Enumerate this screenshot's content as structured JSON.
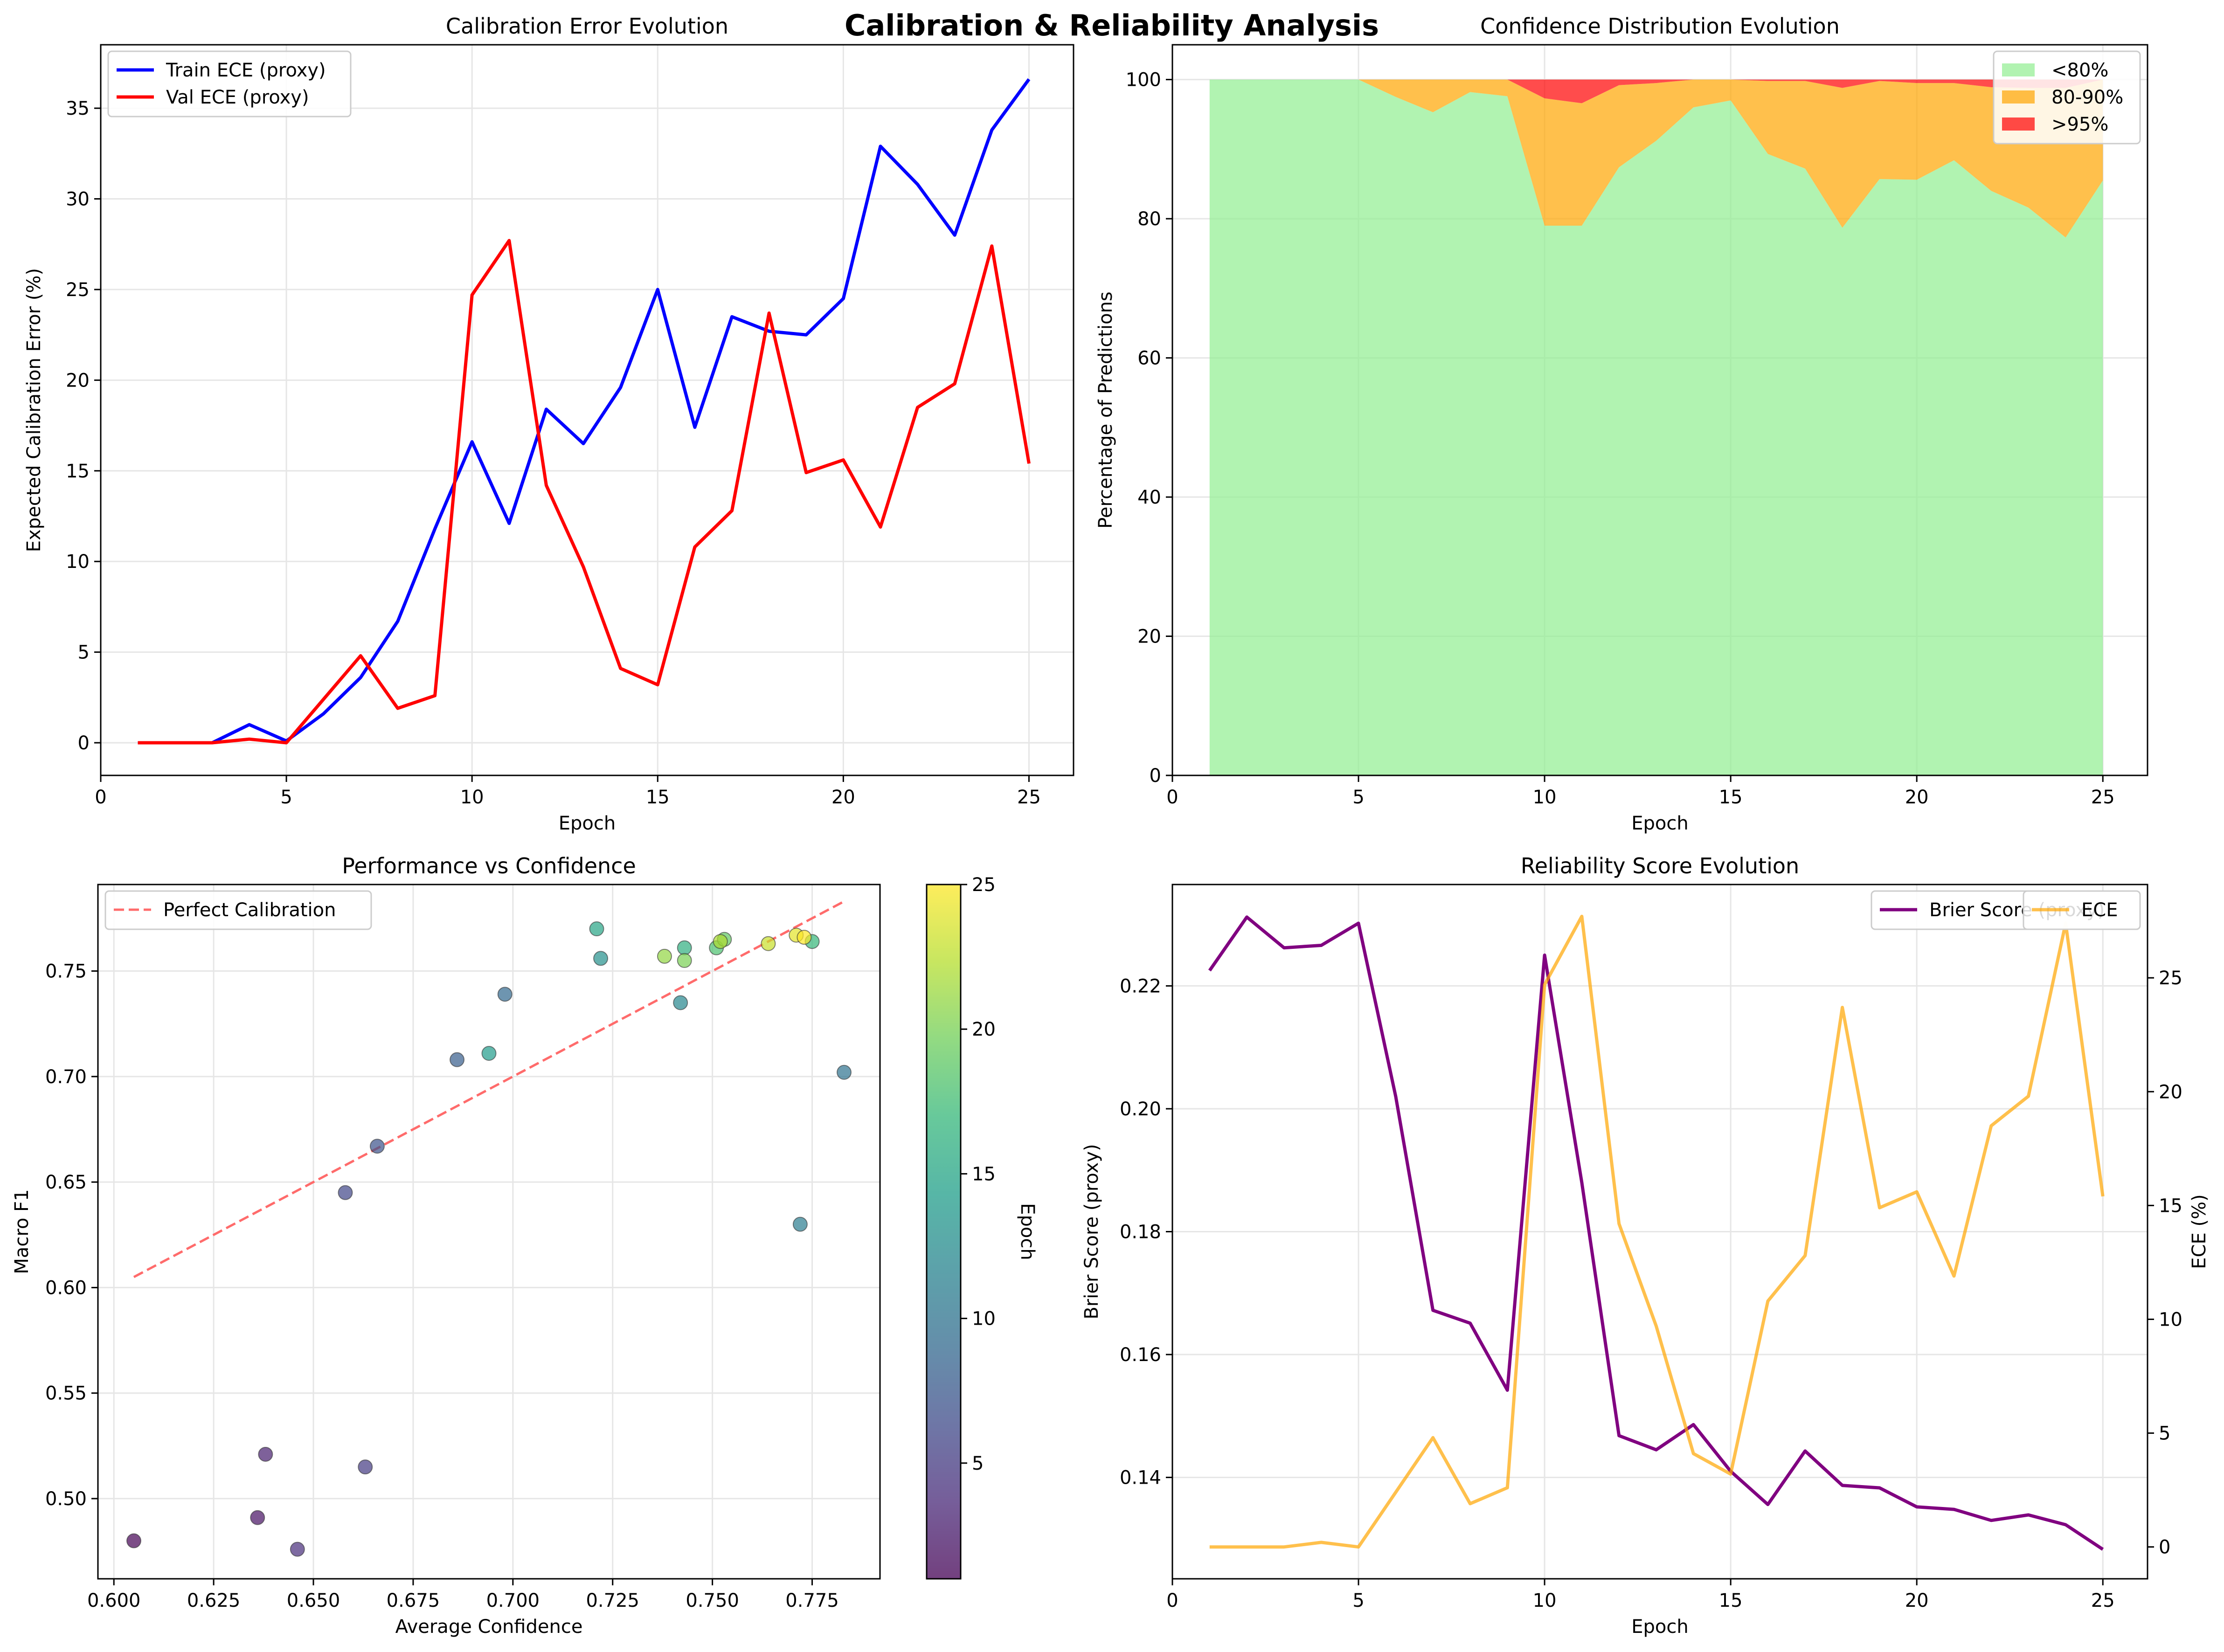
{
  "figure_title": "Calibration & Reliability Analysis",
  "colors": {
    "train": "#0000ff",
    "val": "#ff0000",
    "lt80": "#90ee90",
    "mid": "#ffa500",
    "gt95": "#ff0000",
    "brier": "#800080",
    "ece": "#ffa500",
    "perfect": "#ff6b6b",
    "grid": "#e6e6e6"
  },
  "chart_data": [
    {
      "type": "line",
      "title": "Calibration Error Evolution",
      "xlabel": "Epoch",
      "ylabel": "Expected Calibration Error (%)",
      "xlim": [
        0,
        26.2
      ],
      "ylim": [
        -1.8,
        38.5
      ],
      "xticks": [
        0,
        5,
        10,
        15,
        20,
        25
      ],
      "yticks": [
        0,
        5,
        10,
        15,
        20,
        25,
        30,
        35
      ],
      "grid": true,
      "legend": "upper left",
      "x": [
        1,
        2,
        3,
        4,
        5,
        6,
        7,
        8,
        9,
        10,
        11,
        12,
        13,
        14,
        15,
        16,
        17,
        18,
        19,
        20,
        21,
        22,
        23,
        24,
        25
      ],
      "series": [
        {
          "name": "Train ECE (proxy)",
          "color": "#0000ff",
          "values": [
            0,
            0,
            0,
            1.0,
            0.1,
            1.6,
            3.6,
            6.7,
            11.8,
            16.6,
            12.1,
            18.4,
            16.5,
            19.6,
            25.0,
            17.4,
            23.5,
            22.7,
            22.5,
            24.5,
            32.9,
            30.8,
            28.0,
            33.8,
            36.6
          ]
        },
        {
          "name": "Val ECE (proxy)",
          "color": "#ff0000",
          "values": [
            0,
            0,
            0,
            0.2,
            0,
            2.4,
            4.8,
            1.9,
            2.6,
            24.7,
            27.7,
            14.2,
            9.7,
            4.1,
            3.2,
            10.8,
            12.8,
            23.7,
            14.9,
            15.6,
            11.9,
            18.5,
            19.8,
            27.4,
            15.4
          ]
        }
      ]
    },
    {
      "type": "area",
      "stacked": true,
      "title": "Confidence Distribution Evolution",
      "xlabel": "Epoch",
      "ylabel": "Percentage of Predictions",
      "xlim": [
        0,
        26.2
      ],
      "ylim": [
        0,
        105
      ],
      "xticks": [
        0,
        5,
        10,
        15,
        20,
        25
      ],
      "yticks": [
        0,
        20,
        40,
        60,
        80,
        100
      ],
      "grid": true,
      "legend": "upper right",
      "x": [
        1,
        2,
        3,
        4,
        5,
        6,
        7,
        8,
        9,
        10,
        11,
        12,
        13,
        14,
        15,
        16,
        17,
        18,
        19,
        20,
        21,
        22,
        23,
        24,
        25
      ],
      "series": [
        {
          "name": "<80%",
          "color": "#90ee90",
          "values": [
            100,
            100,
            100,
            100,
            100,
            97.5,
            95.3,
            98.2,
            97.6,
            79,
            79,
            87.4,
            91.2,
            96,
            97,
            89.3,
            87.2,
            78.7,
            85.7,
            85.6,
            88.4,
            84,
            81.6,
            77.3,
            85.5
          ]
        },
        {
          "name": "80-90%",
          "color": "#ffa500",
          "values": [
            0,
            0,
            0,
            0,
            0,
            2.5,
            4.7,
            1.8,
            2.4,
            18.3,
            17.6,
            11.8,
            8.3,
            4,
            3,
            10.5,
            12.6,
            20.1,
            14.1,
            13.9,
            11.1,
            14.9,
            17.2,
            21.5,
            14.5
          ]
        },
        {
          "name": ">95%",
          "color": "#ff0000",
          "values": [
            0,
            0,
            0,
            0,
            0,
            0,
            0,
            0,
            0,
            2.7,
            3.4,
            0.8,
            0.5,
            0,
            0,
            0.2,
            0.2,
            1.2,
            0.2,
            0.5,
            0.5,
            1.1,
            1.2,
            1.2,
            0
          ]
        }
      ]
    },
    {
      "type": "scatter",
      "title": "Performance vs Confidence",
      "xlabel": "Average Confidence",
      "ylabel": "Macro F1",
      "xlim": [
        0.596,
        0.792
      ],
      "ylim": [
        0.462,
        0.791
      ],
      "xticks": [
        0.6,
        0.625,
        0.65,
        0.675,
        0.7,
        0.725,
        0.75,
        0.775
      ],
      "yticks": [
        0.5,
        0.55,
        0.6,
        0.65,
        0.7,
        0.75
      ],
      "grid": true,
      "legend": "upper left",
      "colorbar": {
        "label": "Epoch",
        "min": 1,
        "max": 25,
        "ticks": [
          5,
          10,
          15,
          20,
          25
        ],
        "colormap": "viridis"
      },
      "reference_line": {
        "name": "Perfect Calibration",
        "x": [
          0.605,
          0.783
        ],
        "y": [
          0.605,
          0.783
        ]
      },
      "points": [
        {
          "epoch": 1,
          "x": 0.605,
          "y": 0.48
        },
        {
          "epoch": 2,
          "x": 0.636,
          "y": 0.491
        },
        {
          "epoch": 3,
          "x": 0.638,
          "y": 0.521
        },
        {
          "epoch": 4,
          "x": 0.646,
          "y": 0.476
        },
        {
          "epoch": 5,
          "x": 0.663,
          "y": 0.515
        },
        {
          "epoch": 6,
          "x": 0.658,
          "y": 0.645
        },
        {
          "epoch": 7,
          "x": 0.666,
          "y": 0.667
        },
        {
          "epoch": 8,
          "x": 0.686,
          "y": 0.708
        },
        {
          "epoch": 9,
          "x": 0.698,
          "y": 0.739
        },
        {
          "epoch": 10,
          "x": 0.783,
          "y": 0.702
        },
        {
          "epoch": 11,
          "x": 0.772,
          "y": 0.63
        },
        {
          "epoch": 12,
          "x": 0.742,
          "y": 0.735
        },
        {
          "epoch": 13,
          "x": 0.722,
          "y": 0.756
        },
        {
          "epoch": 14,
          "x": 0.694,
          "y": 0.711
        },
        {
          "epoch": 15,
          "x": 0.721,
          "y": 0.77
        },
        {
          "epoch": 16,
          "x": 0.743,
          "y": 0.761
        },
        {
          "epoch": 17,
          "x": 0.775,
          "y": 0.764
        },
        {
          "epoch": 18,
          "x": 0.751,
          "y": 0.761
        },
        {
          "epoch": 19,
          "x": 0.753,
          "y": 0.765
        },
        {
          "epoch": 20,
          "x": 0.743,
          "y": 0.755
        },
        {
          "epoch": 21,
          "x": 0.738,
          "y": 0.757
        },
        {
          "epoch": 22,
          "x": 0.752,
          "y": 0.764
        },
        {
          "epoch": 23,
          "x": 0.764,
          "y": 0.763
        },
        {
          "epoch": 24,
          "x": 0.771,
          "y": 0.767
        },
        {
          "epoch": 25,
          "x": 0.773,
          "y": 0.766
        }
      ]
    },
    {
      "type": "line",
      "dual_axis": true,
      "title": "Reliability Score Evolution",
      "xlabel": "Epoch",
      "ylabel": "Brier Score (proxy)",
      "ylabel_right": "ECE (%)",
      "xlim": [
        0,
        26.2
      ],
      "ylim": [
        0.1235,
        0.2365
      ],
      "ylim_right": [
        -1.4,
        29.1
      ],
      "xticks": [
        0,
        5,
        10,
        15,
        20,
        25
      ],
      "yticks": [
        0.14,
        0.16,
        0.18,
        0.2,
        0.22
      ],
      "yticks_right": [
        0,
        5,
        10,
        15,
        20,
        25
      ],
      "grid": true,
      "legend": "upper right",
      "x": [
        1,
        2,
        3,
        4,
        5,
        6,
        7,
        8,
        9,
        10,
        11,
        12,
        13,
        14,
        15,
        16,
        17,
        18,
        19,
        20,
        21,
        22,
        23,
        24,
        25
      ],
      "series": [
        {
          "name": "Brier Score (proxy)",
          "color": "#800080",
          "axis": "left",
          "values": [
            0.2225,
            0.2312,
            0.2262,
            0.2266,
            0.2302,
            0.202,
            0.1672,
            0.1651,
            0.1542,
            0.225,
            0.188,
            0.1468,
            0.1445,
            0.1486,
            0.141,
            0.1356,
            0.1443,
            0.1387,
            0.1383,
            0.1352,
            0.1348,
            0.133,
            0.1339,
            0.1323,
            0.1283
          ]
        },
        {
          "name": "ECE",
          "color": "#ffa500",
          "axis": "right",
          "values": [
            0,
            0,
            0,
            0.2,
            0,
            2.4,
            4.8,
            1.9,
            2.6,
            24.7,
            27.7,
            14.2,
            9.7,
            4.1,
            3.2,
            10.8,
            12.8,
            23.7,
            14.9,
            15.6,
            11.9,
            18.5,
            19.8,
            27.4,
            15.4
          ]
        }
      ]
    }
  ]
}
